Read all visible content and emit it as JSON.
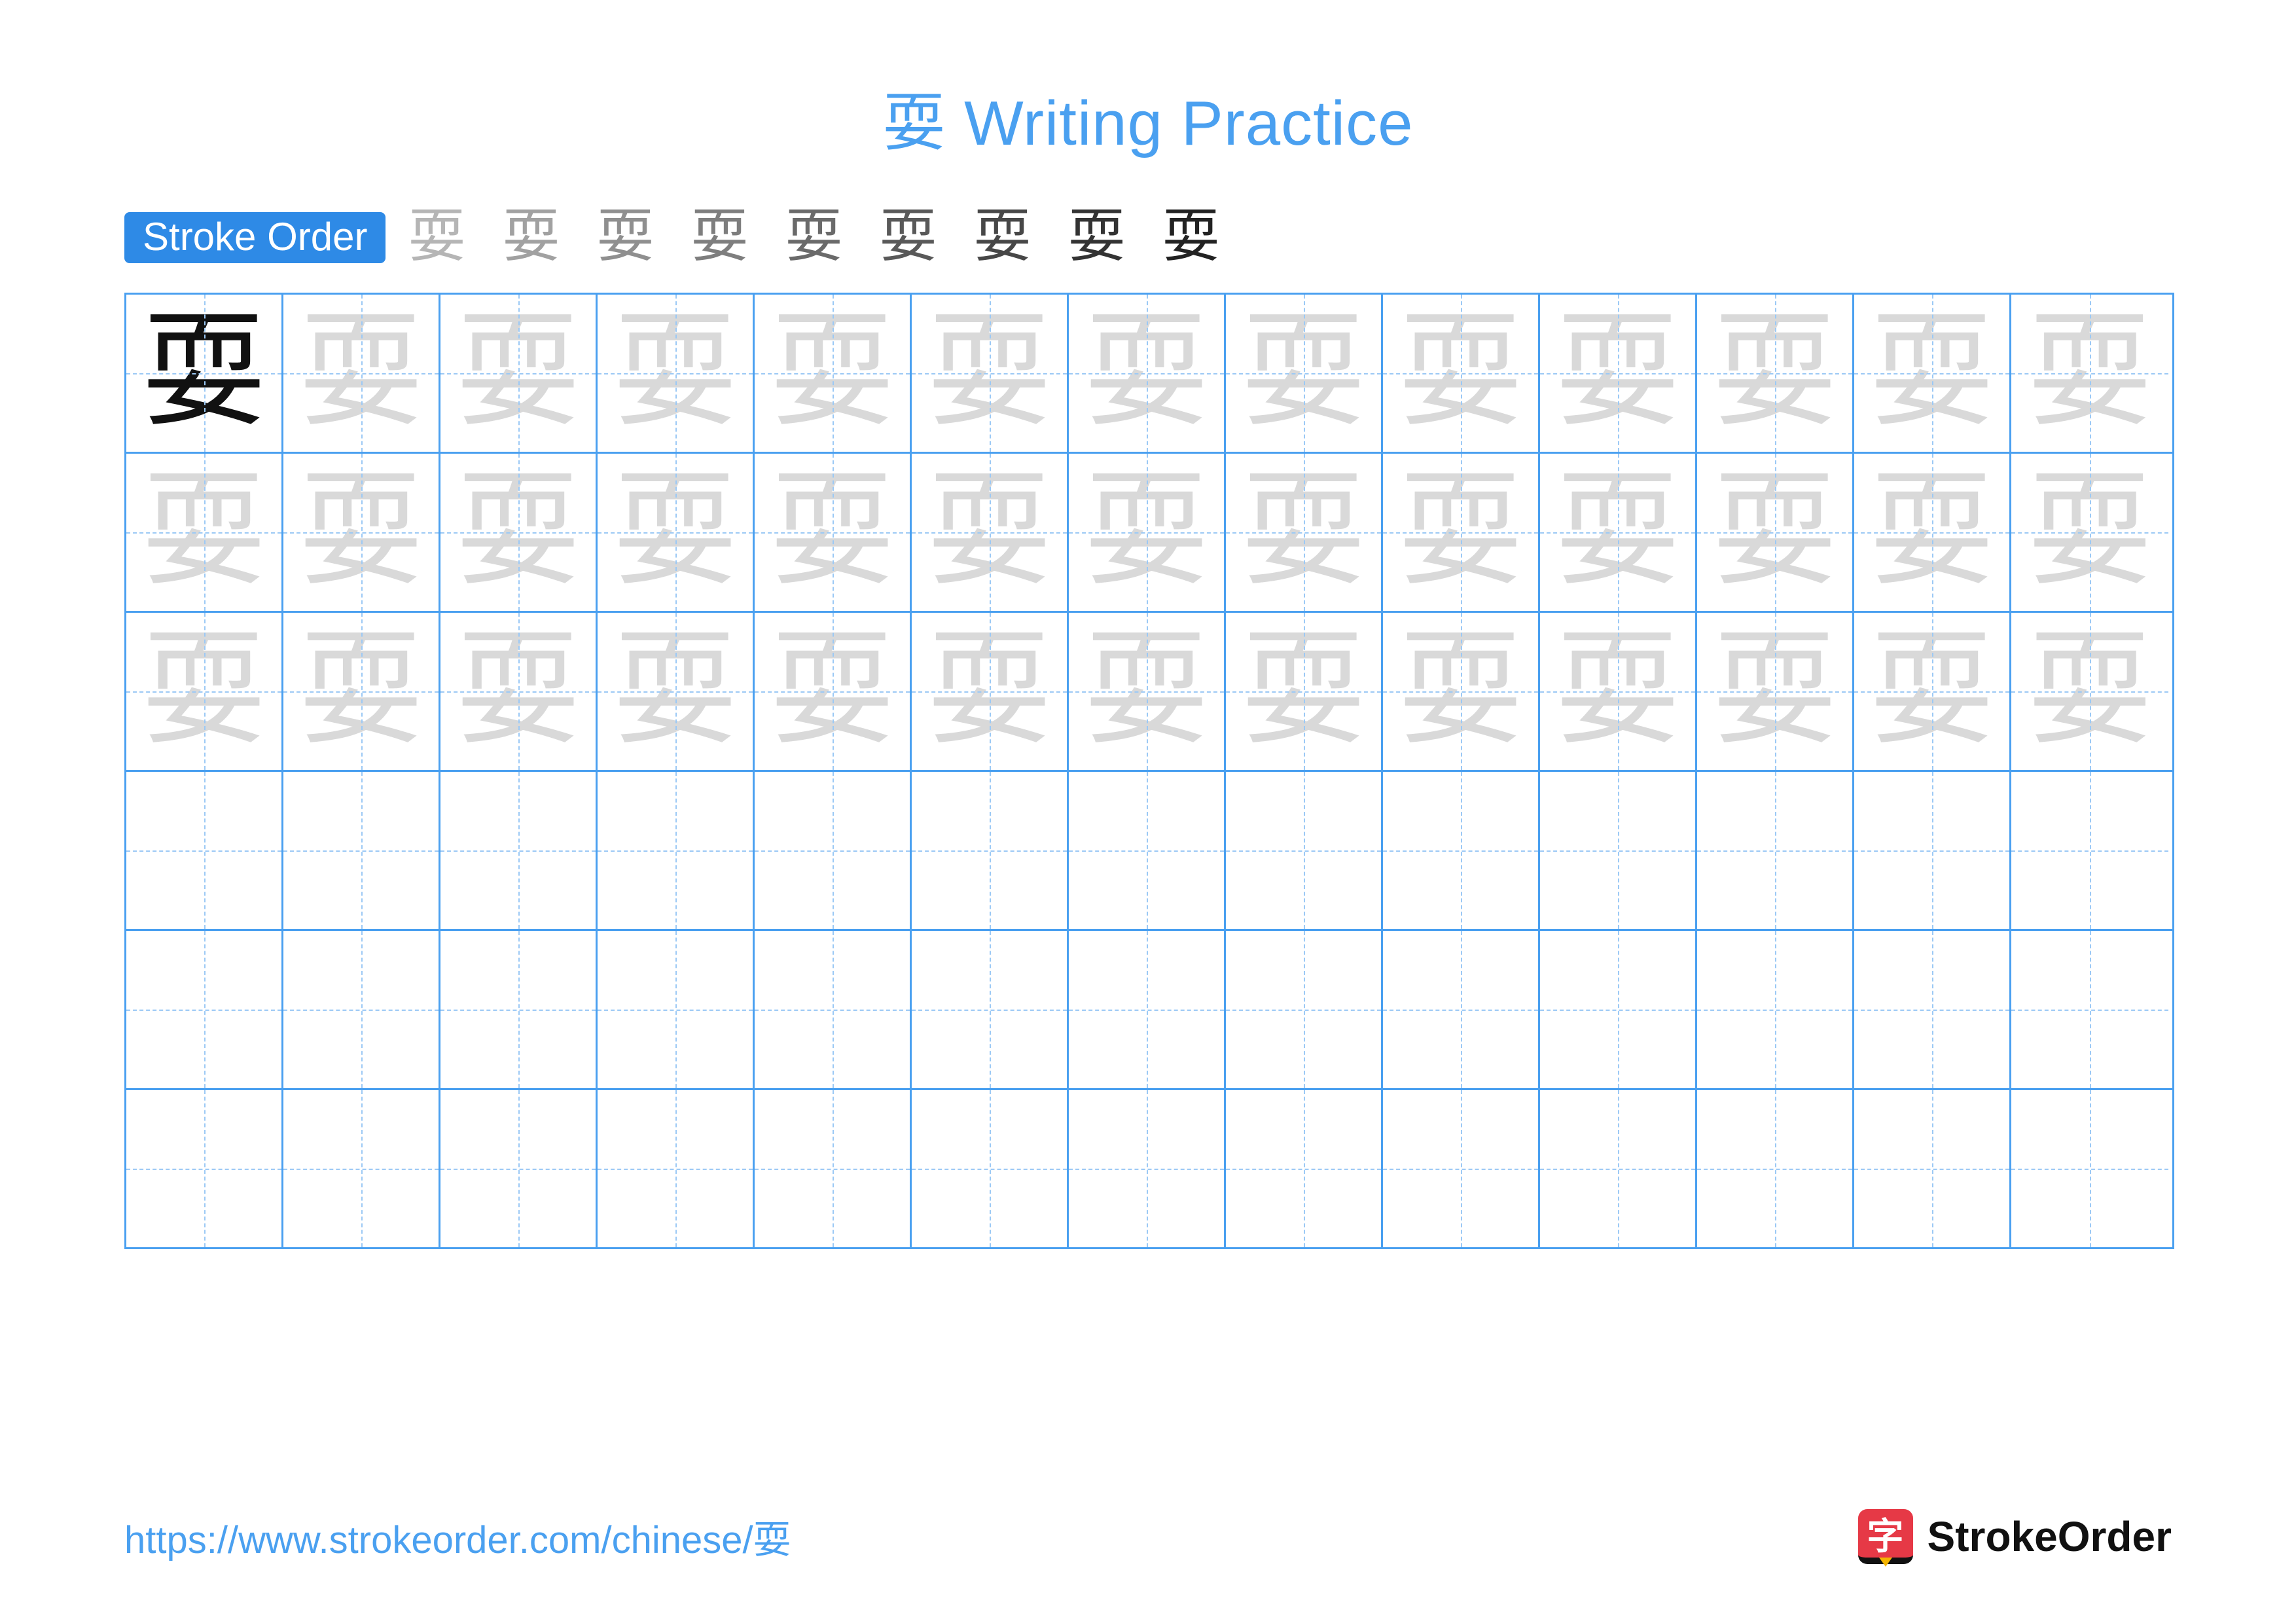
{
  "title": "耍 Writing Practice",
  "stroke_order": {
    "label": "Stroke Order",
    "character": "耍",
    "step_count": 9
  },
  "grid": {
    "rows": 6,
    "cols": 13,
    "character": "耍",
    "model_in_first_cell": true,
    "trace_rows": 3
  },
  "footer": {
    "url": "https://www.strokeorder.com/chinese/耍",
    "logo_char": "字",
    "logo_text": "StrokeOrder"
  },
  "colors": {
    "blue": "#4aa0f0",
    "blue_dark": "#2e8ae6",
    "dash": "#9cc9f5",
    "ghost": "#d9d9d9",
    "accent_red": "#e63946"
  }
}
